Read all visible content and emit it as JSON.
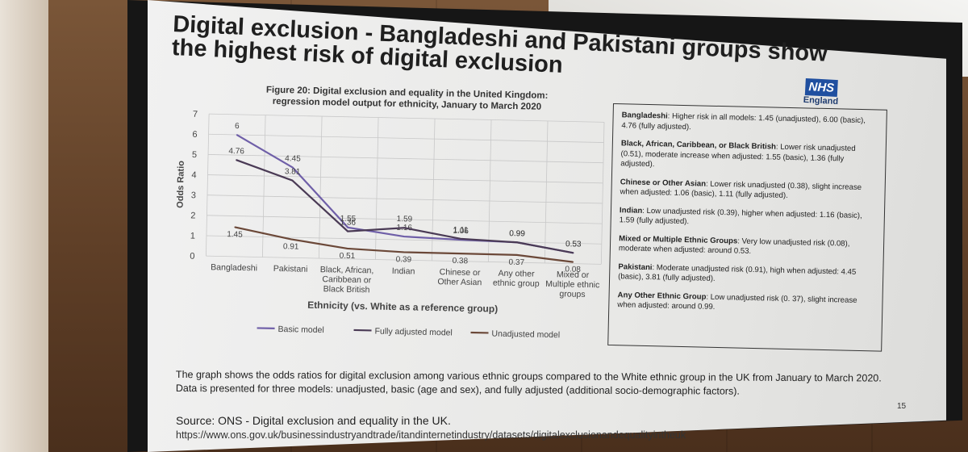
{
  "slide": {
    "title": "Digital exclusion - Bangladeshi and Pakistani groups show the highest risk of digital exclusion",
    "logo_text": "NHS",
    "logo_sub": "England",
    "page_number": "15",
    "description": "The graph shows the odds ratios for digital exclusion among various ethnic groups compared to the White ethnic group in the UK from January to March 2020. Data is presented for three models: unadjusted, basic (age and sex), and fully adjusted (additional socio-demographic factors).",
    "source": "Source: ONS - Digital exclusion and equality in the UK.",
    "source_url": "https://www.ons.gov.uk/businessindustryandtrade/itandinternetindustry/datasets/digitalexclusionandequalityintheuk"
  },
  "findings": [
    {
      "group": "Bangladeshi",
      "text": ": Higher risk in all models: 1.45 (unadjusted), 6.00 (basic), 4.76 (fully adjusted)."
    },
    {
      "group": "Black, African, Caribbean, or Black British",
      "text": ": Lower risk unadjusted (0.51), moderate increase when adjusted: 1.55 (basic), 1.36 (fully adjusted)."
    },
    {
      "group": "Chinese or Other Asian",
      "text": ": Lower risk unadjusted (0.38), slight increase when adjusted: 1.06 (basic), 1.11 (fully adjusted)."
    },
    {
      "group": "Indian",
      "text": ": Low unadjusted risk (0.39), higher when adjusted: 1.16 (basic), 1.59 (fully adjusted)."
    },
    {
      "group": "Mixed or Multiple Ethnic Groups",
      "text": ": Very low unadjusted risk (0.08), moderate when adjusted: around 0.53."
    },
    {
      "group": "Pakistani",
      "text": ": Moderate unadjusted risk (0.91), high when adjusted: 4.45 (basic), 3.81 (fully adjusted)."
    },
    {
      "group": "Any Other Ethnic Group",
      "text": ": Low unadjusted risk (0. 37), slight increase when adjusted: around 0.99."
    }
  ],
  "chart_data": {
    "type": "line",
    "title": "Figure 20: Digital exclusion and equality in the United Kingdom: regression model output for ethnicity, January to March 2020",
    "title_lines": [
      "Figure 20: Digital exclusion and equality in the United Kingdom:",
      "regression model output for ethnicity, January to March 2020"
    ],
    "xlabel": "Ethnicity (vs. White as a reference group)",
    "ylabel": "Odds Ratio",
    "ylim": [
      0,
      7
    ],
    "yticks": [
      "0",
      "1",
      "2",
      "3",
      "4",
      "5",
      "6",
      "7"
    ],
    "categories": [
      [
        "Bangladeshi"
      ],
      [
        "Pakistani"
      ],
      [
        "Black, African,",
        "Caribbean or",
        "Black British"
      ],
      [
        "Indian"
      ],
      [
        "Chinese or",
        "Other Asian"
      ],
      [
        "Any other",
        "ethnic group"
      ],
      [
        "Mixed or",
        "Multiple ethnic",
        "groups"
      ]
    ],
    "series": [
      {
        "name": "Basic model",
        "color": "#6f5fa8",
        "values": [
          6,
          4.45,
          1.55,
          1.16,
          1.06,
          0.99,
          0.53
        ],
        "labels": [
          "6",
          "4.45",
          "1.55",
          "1.16",
          "1.06",
          "0.99",
          "0.53"
        ]
      },
      {
        "name": "Fully adjusted model",
        "color": "#4a3a55",
        "values": [
          4.76,
          3.81,
          1.36,
          1.59,
          1.11,
          0.99,
          0.53
        ],
        "labels": [
          "4.76",
          "3.81",
          "1.36",
          "1.59",
          "1.11",
          "0.99",
          "0.53"
        ]
      },
      {
        "name": "Unadjusted model",
        "color": "#6b4838",
        "values": [
          1.45,
          0.91,
          0.51,
          0.39,
          0.38,
          0.37,
          0.08
        ],
        "labels": [
          "1.45",
          "0.91",
          "0.51",
          "0.39",
          "0.38",
          "0.37",
          "0.08"
        ]
      }
    ],
    "legend_position": "bottom"
  }
}
